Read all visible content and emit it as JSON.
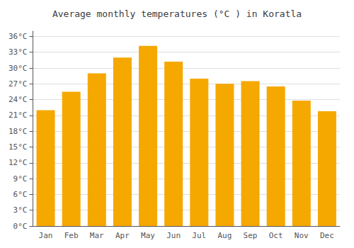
{
  "chart_data": {
    "type": "bar",
    "title": "Average monthly temperatures (°C ) in Koratla",
    "categories": [
      "Jan",
      "Feb",
      "Mar",
      "Apr",
      "May",
      "Jun",
      "Jul",
      "Aug",
      "Sep",
      "Oct",
      "Nov",
      "Dec"
    ],
    "values": [
      22.0,
      25.5,
      29.0,
      32.0,
      34.2,
      31.2,
      28.0,
      27.0,
      27.5,
      26.5,
      23.8,
      21.8
    ],
    "color": "#F5A800",
    "ylim": [
      0,
      37
    ],
    "yticks": [
      {
        "value": 0,
        "label": "0°C"
      },
      {
        "value": 3,
        "label": "3°C"
      },
      {
        "value": 6,
        "label": "6°C"
      },
      {
        "value": 9,
        "label": "9°C"
      },
      {
        "value": 12,
        "label": "12°C"
      },
      {
        "value": 15,
        "label": "15°C"
      },
      {
        "value": 18,
        "label": "18°C"
      },
      {
        "value": 21,
        "label": "21°C"
      },
      {
        "value": 24,
        "label": "24°C"
      },
      {
        "value": 27,
        "label": "27°C"
      },
      {
        "value": 30,
        "label": "30°C"
      },
      {
        "value": 33,
        "label": "33°C"
      },
      {
        "value": 36,
        "label": "36°C"
      }
    ],
    "grid": true
  }
}
